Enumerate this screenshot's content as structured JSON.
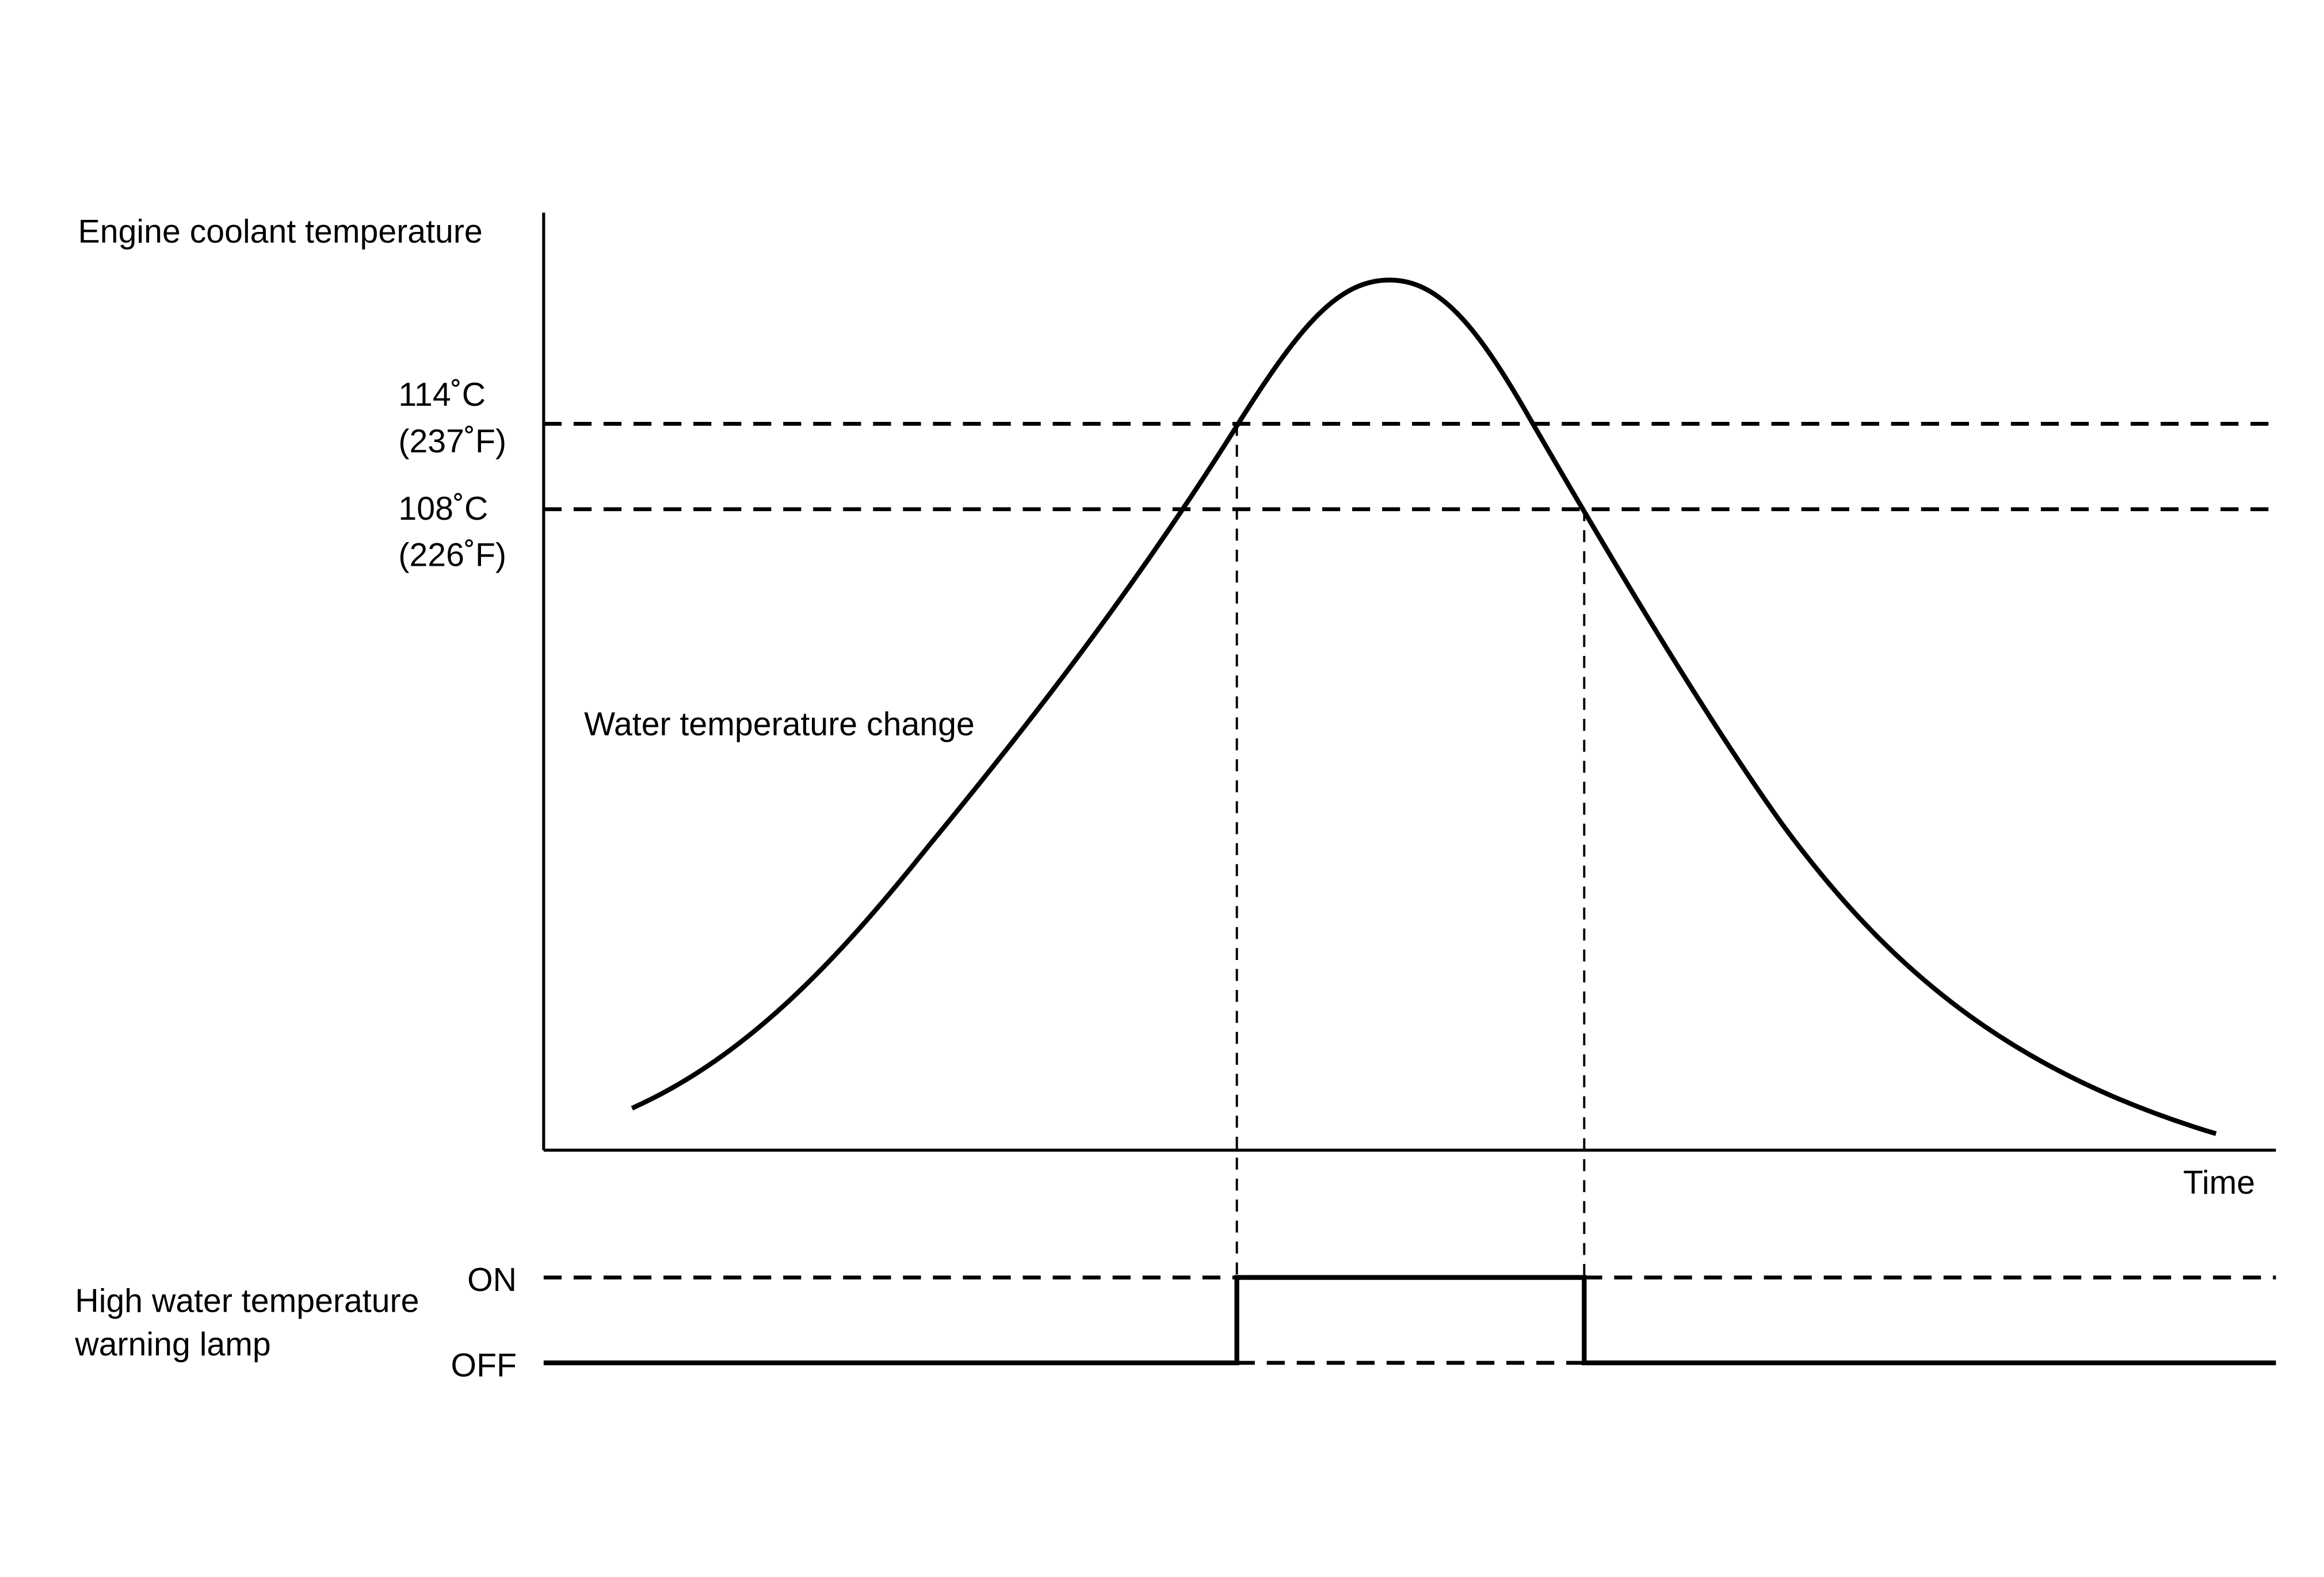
{
  "y_axis_label": "Engine coolant temperature",
  "thresholds": [
    {
      "celsius": "114˚C",
      "fahrenheit": "(237˚F)"
    },
    {
      "celsius": "108˚C",
      "fahrenheit": "(226˚F)"
    }
  ],
  "curve_label": "Water temperature change",
  "x_axis_label": "Time",
  "lamp": {
    "label_lines": [
      "High water temperature",
      "warning lamp"
    ],
    "on": "ON",
    "off": "OFF"
  }
}
